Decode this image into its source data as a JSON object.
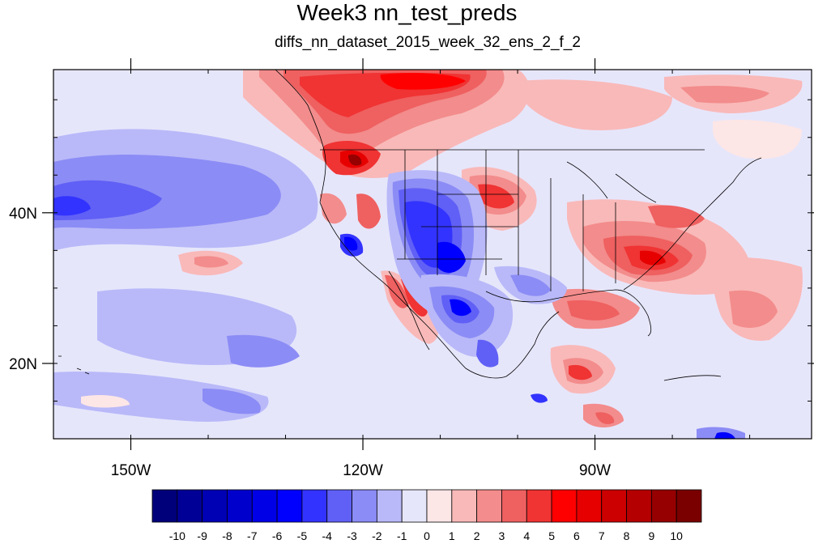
{
  "title": "Week3 nn_test_preds",
  "subtitle": "diffs_nn_dataset_2015_week_32_ens_2_f_2",
  "map": {
    "projection": "cylindrical equidistant",
    "lon_range": [
      -160,
      -62
    ],
    "lat_range": [
      10,
      59
    ],
    "lon_ticks": [
      {
        "lon": -150,
        "label": "150W"
      },
      {
        "lon": -120,
        "label": "120W"
      },
      {
        "lon": -90,
        "label": "90W"
      }
    ],
    "lat_ticks": [
      {
        "lat": 40,
        "label": "40N"
      },
      {
        "lat": 20,
        "label": "20N"
      }
    ]
  },
  "colorbar": {
    "labels": [
      "-10",
      "-9",
      "-8",
      "-7",
      "-6",
      "-5",
      "-4",
      "-3",
      "-2",
      "-1",
      "0",
      "1",
      "2",
      "3",
      "4",
      "5",
      "6",
      "7",
      "8",
      "9",
      "10"
    ],
    "colors": [
      "#00007a",
      "#000096",
      "#0000b4",
      "#0000cd",
      "#0000e6",
      "#0000ff",
      "#3333ff",
      "#6060f6",
      "#8c8cf6",
      "#b9b9f9",
      "#e6e6fb",
      "#fde6e6",
      "#f9b9b9",
      "#f38c8c",
      "#ef6060",
      "#f03333",
      "#ff0000",
      "#e60000",
      "#cc0000",
      "#b40000",
      "#960000",
      "#7a0000"
    ]
  }
}
